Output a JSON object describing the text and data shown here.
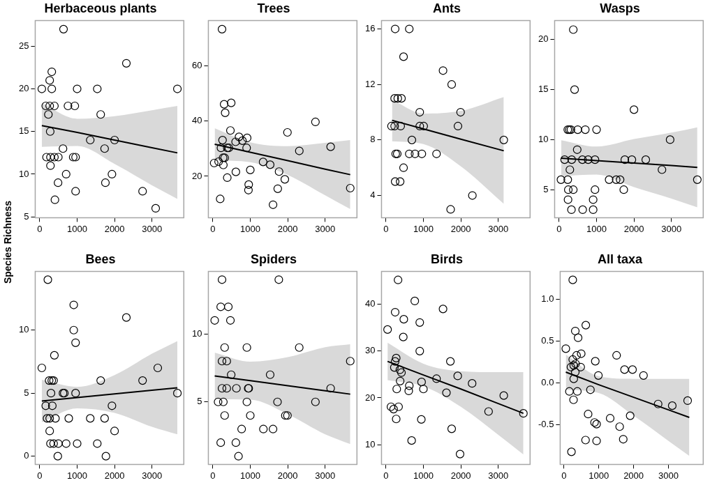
{
  "chart_data": [
    {
      "type": "scatter",
      "title": "Herbaceous plants",
      "ylabel": "Species Richness",
      "marker": "circle",
      "xlim": [
        -120,
        3850
      ],
      "xticks": [
        0,
        1000,
        2000,
        3000
      ],
      "ylim": [
        4.9,
        28
      ],
      "yticks": [
        5,
        10,
        15,
        20,
        25
      ],
      "series": [
        {
          "type": "scatter",
          "color": "#000000",
          "x": [
            636,
            2315,
            322,
            266,
            56,
            322,
            1000,
            1538,
            3678,
            161,
            266,
            392,
            755,
            937,
            231,
            1629,
            280,
            1350,
            2000,
            622,
            1734,
            182,
            287,
            392,
            497,
            895,
            958,
            287,
            706,
            1930,
            490,
            1755,
            958,
            2748,
            406,
            3098
          ],
          "values": [
            27,
            23,
            22,
            21,
            20,
            20,
            20,
            20,
            20,
            18,
            18,
            18,
            18,
            18,
            17,
            17,
            15,
            14,
            14,
            13,
            13,
            12,
            12,
            12,
            12,
            12,
            12,
            11,
            10,
            10,
            9,
            9,
            8,
            8,
            7,
            6
          ]
        },
        {
          "type": "line",
          "marker": "none",
          "color": "#000000",
          "x": [
            56,
            1000,
            2000,
            3000,
            3678
          ],
          "values": [
            15.7,
            14.9,
            14.0,
            13.1,
            12.5
          ],
          "lower": [
            13.2,
            13.3,
            11.2,
            8.7,
            7.1
          ],
          "upper": [
            18.3,
            16.5,
            16.8,
            17.5,
            18.0
          ]
        }
      ]
    },
    {
      "type": "scatter",
      "title": "Trees",
      "marker": "circle",
      "xlim": [
        -120,
        3850
      ],
      "xticks": [
        0,
        1000,
        2000,
        3000
      ],
      "ylim": [
        5,
        76.4
      ],
      "yticks": [
        20,
        40,
        60
      ],
      "series": [
        {
          "type": "scatter",
          "color": "#000000",
          "x": [
            245,
            301,
            490,
            329,
            2741,
            469,
            1993,
            699,
            916,
            790,
            259,
            608,
            3147,
            217,
            385,
            427,
            902,
            2310,
            273,
            315,
            154,
            35,
            280,
            1343,
            1531,
            1000,
            615,
            1769,
            385,
            1923,
            958,
            951,
            1734,
            3671,
            196,
            1608
          ],
          "values": [
            73.3,
            46.1,
            46.6,
            43.0,
            39.7,
            36.6,
            35.9,
            34.3,
            33.9,
            32.9,
            33.1,
            32.5,
            30.7,
            30.3,
            30.3,
            30.3,
            30.3,
            29.2,
            26.7,
            26.7,
            25.3,
            24.8,
            24.1,
            25.2,
            24.2,
            22.3,
            21.6,
            21.7,
            19.5,
            18.9,
            17.0,
            15.0,
            15.5,
            15.7,
            11.8,
            9.7
          ]
        },
        {
          "type": "line",
          "marker": "none",
          "color": "#000000",
          "x": [
            49,
            1000,
            2000,
            3000,
            3671
          ],
          "values": [
            31.6,
            28.7,
            25.7,
            22.6,
            20.6
          ],
          "lower": [
            25.8,
            25.1,
            20.5,
            13.1,
            8.1
          ],
          "upper": [
            37.4,
            32.3,
            30.9,
            32.1,
            33.1
          ]
        }
      ]
    },
    {
      "type": "scatter",
      "title": "Ants",
      "marker": "circle",
      "xlim": [
        -120,
        3850
      ],
      "xticks": [
        0,
        1000,
        2000,
        3000
      ],
      "ylim": [
        2.4,
        16.6
      ],
      "yticks": [
        4,
        8,
        12,
        16
      ],
      "series": [
        {
          "type": "scatter",
          "color": "#000000",
          "x": [
            245,
            622,
            469,
            1524,
            1755,
            231,
            315,
            413,
            902,
            1993,
            147,
            231,
            392,
            902,
            1007,
            1923,
            692,
            3147,
            259,
            301,
            622,
            776,
            958,
            1350,
            469,
            245,
            378,
            2308,
            1727
          ],
          "values": [
            16,
            16,
            14,
            13,
            12,
            11,
            11,
            11,
            10,
            10,
            9,
            9,
            9,
            9,
            9,
            9,
            8,
            8,
            7,
            7,
            7,
            7,
            7,
            7,
            6,
            5,
            5,
            4,
            3
          ]
        },
        {
          "type": "line",
          "marker": "none",
          "color": "#000000",
          "x": [
            161,
            1000,
            2000,
            3147
          ],
          "values": [
            9.42,
            8.8,
            8.06,
            7.22
          ],
          "lower": [
            7.9,
            7.7,
            6.1,
            3.4
          ],
          "upper": [
            10.9,
            9.9,
            10.1,
            11.1
          ]
        }
      ]
    },
    {
      "type": "scatter",
      "title": "Wasps",
      "marker": "circle",
      "xlim": [
        -120,
        3850
      ],
      "xticks": [
        0,
        1000,
        2000,
        3000
      ],
      "ylim": [
        2.2,
        21.9
      ],
      "yticks": [
        5,
        10,
        15,
        20
      ],
      "series": [
        {
          "type": "scatter",
          "color": "#000000",
          "x": [
            378,
            413,
            2000,
            231,
            273,
            315,
            497,
            699,
            1000,
            2965,
            483,
            147,
            336,
            622,
            776,
            958,
            1755,
            1944,
            2315,
            287,
            2748,
            49,
            231,
            1336,
            1524,
            1629,
            3692,
            245,
            378,
            958,
            1727,
            238,
            909,
            329,
            629,
            909
          ],
          "values": [
            21,
            15,
            13,
            11,
            11,
            11,
            11,
            11,
            11,
            10,
            9,
            8,
            8,
            8,
            8,
            8,
            8,
            8,
            8,
            7,
            7,
            6,
            6,
            6,
            6,
            6,
            6,
            5,
            5,
            5,
            5,
            4,
            4,
            3,
            3,
            3
          ]
        },
        {
          "type": "line",
          "marker": "none",
          "color": "#000000",
          "x": [
            56,
            1000,
            2000,
            3000,
            3692
          ],
          "values": [
            8.15,
            7.91,
            7.66,
            7.41,
            7.23
          ],
          "lower": [
            6.35,
            6.51,
            5.26,
            4.11,
            3.24
          ],
          "upper": [
            9.95,
            9.31,
            10.06,
            10.71,
            11.24
          ]
        }
      ]
    },
    {
      "type": "scatter",
      "title": "Bees",
      "marker": "circle",
      "xlim": [
        -120,
        3850
      ],
      "xticks": [
        0,
        1000,
        2000,
        3000
      ],
      "ylim": [
        -0.65,
        14.65
      ],
      "yticks": [
        0,
        5,
        10
      ],
      "series": [
        {
          "type": "scatter",
          "color": "#000000",
          "x": [
            217,
            909,
            2315,
            909,
            958,
            392,
            56,
            3154,
            252,
            322,
            371,
            1629,
            2748,
            301,
            622,
            657,
            958,
            3678,
            161,
            336,
            1930,
            196,
            266,
            420,
            776,
            1350,
            1734,
            266,
            2000,
            287,
            371,
            497,
            706,
            1000,
            1538,
            483,
            1769
          ],
          "values": [
            14,
            12,
            11,
            10,
            9,
            8,
            7,
            7,
            6,
            6,
            6,
            6,
            6,
            5,
            5,
            5,
            5,
            5,
            4,
            4,
            4,
            3,
            3,
            3,
            3,
            3,
            3,
            2,
            2,
            1,
            1,
            1,
            1,
            1,
            1,
            0,
            0
          ]
        },
        {
          "type": "line",
          "marker": "none",
          "color": "#000000",
          "x": [
            56,
            1000,
            2000,
            3000,
            3678
          ],
          "values": [
            4.38,
            4.65,
            4.94,
            5.23,
            5.43
          ],
          "lower": [
            2.7,
            3.8,
            3.44,
            2.33,
            1.73
          ],
          "upper": [
            6.06,
            5.5,
            6.44,
            8.13,
            9.13
          ]
        }
      ]
    },
    {
      "type": "scatter",
      "title": "Spiders",
      "marker": "circle",
      "xlim": [
        -120,
        3850
      ],
      "xticks": [
        0,
        1000,
        2000,
        3000
      ],
      "ylim": [
        0.4,
        14.6
      ],
      "yticks": [
        5,
        10
      ],
      "series": [
        {
          "type": "scatter",
          "color": "#000000",
          "x": [
            245,
            1762,
            210,
            413,
            49,
            469,
            315,
            909,
            2308,
            245,
            371,
            3671,
            490,
            1531,
            245,
            371,
            629,
            944,
            958,
            3147,
            140,
            280,
            909,
            1727,
            2741,
            315,
            1000,
            1937,
            1993,
            769,
            1350,
            1608,
            210,
            615,
            685
          ],
          "values": [
            14,
            14,
            12,
            12,
            11,
            11,
            9,
            9,
            9,
            8,
            8,
            8,
            7,
            7,
            6,
            6,
            6,
            6,
            6,
            6,
            5,
            5,
            5,
            5,
            5,
            4,
            4,
            4,
            4,
            3,
            3,
            3,
            2,
            2,
            1
          ]
        },
        {
          "type": "line",
          "marker": "none",
          "color": "#000000",
          "x": [
            49,
            1000,
            2000,
            3000,
            3671
          ],
          "values": [
            6.91,
            6.56,
            6.19,
            5.82,
            5.57
          ],
          "lower": [
            5.19,
            5.16,
            4.09,
            2.62,
            1.9
          ],
          "upper": [
            8.63,
            7.96,
            8.29,
            9.02,
            9.24
          ]
        }
      ]
    },
    {
      "type": "scatter",
      "title": "Birds",
      "marker": "circle",
      "xlim": [
        -120,
        3850
      ],
      "xticks": [
        0,
        1000,
        2000,
        3000
      ],
      "ylim": [
        5.8,
        47
      ],
      "yticks": [
        10,
        20,
        30,
        40
      ],
      "series": [
        {
          "type": "scatter",
          "color": "#000000",
          "x": [
            322,
            769,
            1524,
            245,
            476,
            902,
            42,
            462,
            902,
            273,
            245,
            1720,
            224,
            371,
            413,
            1916,
            1350,
            378,
            951,
            2301,
            622,
            287,
            1000,
            608,
            1615,
            3147,
            133,
            336,
            203,
            2741,
            3671,
            273,
            944,
            1755,
            685,
            1979
          ],
          "values": [
            45.2,
            40.7,
            39.0,
            38.3,
            36.8,
            36.1,
            34.6,
            33.0,
            30.0,
            28.5,
            27.8,
            27.8,
            26.5,
            26.0,
            25.4,
            24.7,
            24.1,
            23.6,
            23.4,
            23.1,
            22.6,
            21.9,
            21.9,
            21.5,
            21.1,
            20.5,
            18.1,
            18.1,
            17.6,
            17.1,
            16.7,
            15.5,
            15.4,
            13.4,
            10.9,
            8.0
          ]
        },
        {
          "type": "line",
          "marker": "none",
          "color": "#000000",
          "x": [
            42,
            1000,
            2000,
            3000,
            3671
          ],
          "values": [
            27.8,
            24.9,
            21.9,
            18.8,
            16.7
          ],
          "lower": [
            23.8,
            22.5,
            18.1,
            12.1,
            7.9
          ],
          "upper": [
            31.8,
            27.3,
            25.7,
            25.5,
            25.5
          ]
        }
      ]
    },
    {
      "type": "scatter",
      "title": "All taxa",
      "marker": "circle",
      "xlim": [
        -110,
        4000
      ],
      "xticks": [
        0,
        1000,
        2000,
        3000
      ],
      "ylim": [
        -0.97,
        1.33
      ],
      "yticks": [
        -0.5,
        {
          "value": 0,
          "label": "0.0"
        },
        0.5,
        {
          "value": 1,
          "label": "1.0"
        }
      ],
      "series": [
        {
          "type": "scatter",
          "color": "#000000",
          "x": [
            251,
            626,
            324,
            405,
            52,
            494,
            361,
            1511,
            251,
            899,
            332,
            280,
            199,
            479,
            1739,
            1968,
            324,
            987,
            2284,
            280,
            155,
            383,
            759,
            273,
            3552,
            2704,
            3110,
            693,
            1901,
            1326,
            877,
            936,
            1599,
            619,
            936,
            1702,
            214
          ],
          "values": [
            1.23,
            0.69,
            0.62,
            0.54,
            0.41,
            0.35,
            0.33,
            0.33,
            0.28,
            0.26,
            0.23,
            0.21,
            0.19,
            0.19,
            0.16,
            0.16,
            0.13,
            0.09,
            0.09,
            0.05,
            -0.1,
            -0.1,
            -0.08,
            -0.2,
            -0.21,
            -0.25,
            -0.27,
            -0.37,
            -0.39,
            -0.42,
            -0.47,
            -0.49,
            -0.52,
            -0.68,
            -0.69,
            -0.67,
            -0.82
          ]
        },
        {
          "type": "line",
          "marker": "none",
          "color": "#000000",
          "x": [
            52,
            1000,
            2000,
            3000,
            3600
          ],
          "values": [
            0.13,
            -0.02,
            -0.17,
            -0.32,
            -0.41
          ],
          "lower": [
            -0.08,
            -0.12,
            -0.39,
            -0.69,
            -0.87
          ],
          "upper": [
            0.34,
            0.08,
            0.05,
            0.05,
            0.05
          ]
        }
      ]
    }
  ]
}
